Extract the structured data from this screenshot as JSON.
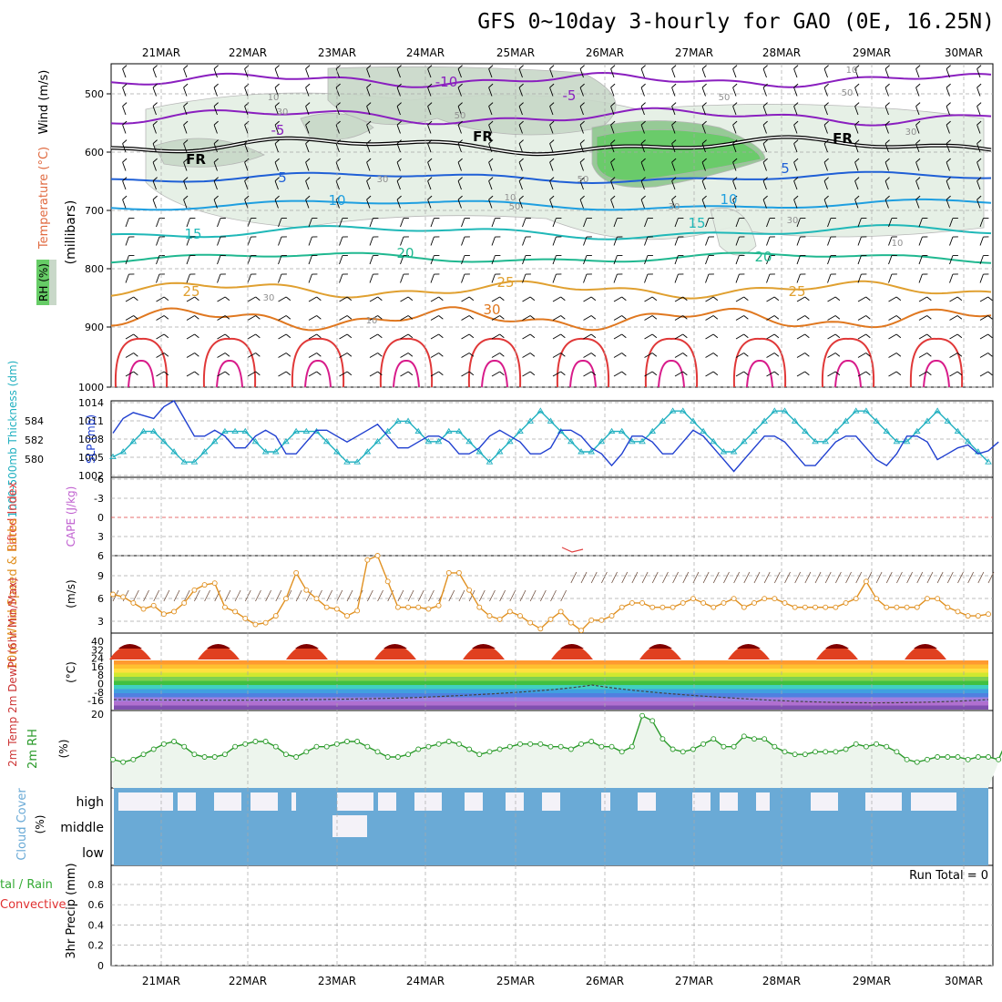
{
  "title": "GFS 0~10day 3-hourly for GAO (0E, 16.25N)",
  "dates": [
    "21MAR",
    "22MAR",
    "23MAR",
    "24MAR",
    "25MAR",
    "26MAR",
    "27MAR",
    "28MAR",
    "29MAR",
    "30MAR"
  ],
  "colors": {
    "grid": "#a8a8a8",
    "temp_m10": "#8a1fbf",
    "temp_5": "#1f5fd6",
    "temp_10": "#1f9fe0",
    "temp_15": "#20b8b8",
    "temp_20": "#20b890",
    "temp_25": "#e0a030",
    "temp_30": "#e07820",
    "temp_35": "#e03838",
    "rh_light": "#e4efe4",
    "rh_mid": "#c8d8c8",
    "rh_dark": "#8ec68e",
    "rh_green": "#66cc66",
    "slp": "#1f3fd0",
    "thickness": "#20b0c0",
    "wind10": "#e09020",
    "rh2m": "#2a9a2a",
    "cloud": "#6aaad6",
    "cloud_clear": "#f4f2f8",
    "lifted": "#e04040",
    "cape": "#c060d0",
    "run_total": "#000000"
  },
  "panels": {
    "upper": {
      "ylabel_wind": "Wind (m/s)",
      "ylabel_temp": "Temperature (°C)",
      "ylabel_rh": "RH (%)",
      "ylabel_units": "(millibars)",
      "yticks": [
        "500",
        "600",
        "700",
        "800",
        "900",
        "1000"
      ],
      "contour_labels": [
        {
          "text": "-10",
          "color": "temp_m10"
        },
        {
          "text": "-5",
          "color": "temp_m10"
        },
        {
          "text": "-5",
          "color": "temp_m10"
        },
        {
          "text": "FR",
          "color": "black"
        },
        {
          "text": "FR",
          "color": "black"
        },
        {
          "text": "FR",
          "color": "black"
        },
        {
          "text": "5",
          "color": "temp_5"
        },
        {
          "text": "5",
          "color": "temp_5"
        },
        {
          "text": "10",
          "color": "temp_10"
        },
        {
          "text": "10",
          "color": "temp_10"
        },
        {
          "text": "15",
          "color": "temp_15"
        },
        {
          "text": "15",
          "color": "temp_15"
        },
        {
          "text": "20",
          "color": "temp_20"
        },
        {
          "text": "20",
          "color": "temp_20"
        },
        {
          "text": "25",
          "color": "temp_25"
        },
        {
          "text": "25",
          "color": "temp_25"
        },
        {
          "text": "25",
          "color": "temp_25"
        },
        {
          "text": "30",
          "color": "temp_30"
        }
      ],
      "rh_labels": [
        "10",
        "30",
        "30",
        "50",
        "50",
        "30",
        "10",
        "30",
        "50",
        "30",
        "10",
        "50",
        "10",
        "30",
        "50",
        "10"
      ]
    },
    "slp": {
      "ylabel_left": "1000-500mb Thickness (dm)",
      "ylabel_right": "SLP (mb)",
      "yticks_left": [
        "584",
        "582",
        "580"
      ],
      "yticks_right": [
        "1014",
        "1011",
        "1008",
        "1005",
        "1002"
      ]
    },
    "lifted": {
      "ylabel_left": "Lifted Index",
      "ylabel_right": "CAPE (J/kg)",
      "yticks": [
        "-6",
        "-3",
        "0",
        "3",
        "6"
      ]
    },
    "wind10": {
      "ylabel": "10m Wind Speed & Barbs",
      "ylabel_units": "(m/s)",
      "yticks": [
        "9",
        "6",
        "3"
      ]
    },
    "temp2m": {
      "ylabel": "2m Temp 2m DewPt (6hr Min/Max)",
      "ylabel_units": "(°C)",
      "yticks": [
        "40",
        "32",
        "24",
        "16",
        "8",
        "0",
        "-8",
        "-16"
      ]
    },
    "rh2m": {
      "ylabel": "2m RH",
      "ylabel_units": "(%)",
      "yticks": [
        "20"
      ]
    },
    "cloud": {
      "ylabel": "Cloud Cover",
      "ylabel_units": "(%)",
      "levels": [
        "high",
        "middle",
        "low"
      ]
    },
    "precip": {
      "ylabel_left": "tal / Rain",
      "ylabel_left2": "Convective",
      "ylabel": "3hr Precip (mm)",
      "yticks": [
        "0.8",
        "0.6",
        "0.4",
        "0.2",
        "0"
      ],
      "run_total": "Run Total = 0"
    }
  },
  "chart_data": [
    {
      "type": "line",
      "name": "2m RH (%)",
      "values": [
        11,
        10,
        11,
        13,
        15,
        17,
        18,
        16,
        13,
        12,
        12,
        13,
        16,
        17,
        18,
        18,
        16,
        13,
        12,
        14,
        16,
        16,
        17,
        18,
        18,
        16,
        14,
        12,
        12,
        13,
        15,
        16,
        17,
        18,
        17,
        15,
        13,
        14,
        15,
        16,
        17,
        17,
        17,
        16,
        16,
        15,
        17,
        18,
        16,
        16,
        14,
        16,
        28,
        26,
        19,
        15,
        14,
        15,
        17,
        19,
        16,
        16,
        20,
        19,
        19,
        16,
        14,
        13,
        13,
        14,
        14,
        14,
        15,
        17,
        16,
        17,
        16,
        14,
        11,
        10,
        11,
        12,
        12,
        12,
        11,
        12,
        12,
        11,
        20,
        30
      ],
      "ylim": [
        0,
        30
      ]
    },
    {
      "type": "line",
      "name": "10m Wind Speed (m/s)",
      "values": [
        6.5,
        6.2,
        5.5,
        4.8,
        5.2,
        4.2,
        4.5,
        5.5,
        7,
        7.6,
        7.8,
        5,
        4.5,
        3.7,
        3,
        3.2,
        4,
        6,
        9,
        7,
        6,
        5,
        4.8,
        4,
        4.6,
        10.5,
        11,
        8,
        5,
        5,
        5,
        4.8,
        5.2,
        9,
        9,
        7,
        5,
        4,
        3.6,
        4.5,
        4,
        3.2,
        2.5,
        3.6,
        4.5,
        3.2,
        2.3,
        3.5,
        3.5,
        4,
        5,
        5.5,
        5.5,
        5,
        5,
        5,
        5.5,
        6,
        5.5,
        5,
        5.5,
        6,
        5,
        5.5,
        6,
        6,
        5.5,
        5,
        5,
        5,
        5,
        5,
        5.5,
        6,
        8,
        6,
        5,
        5,
        5,
        5,
        6,
        6,
        5,
        4.5,
        4,
        4,
        4.2
      ],
      "ylim": [
        2,
        11
      ]
    },
    {
      "type": "line",
      "name": "SLP (mb)",
      "values": [
        1008.5,
        1011,
        1012,
        1011.5,
        1011,
        1013,
        1014,
        1011,
        1008,
        1008,
        1009,
        1008,
        1006,
        1006,
        1008,
        1009,
        1008,
        1005,
        1005,
        1007,
        1009,
        1009,
        1008,
        1007,
        1008,
        1009,
        1010,
        1008,
        1006,
        1006,
        1007,
        1008,
        1008,
        1007,
        1005,
        1005,
        1006,
        1008,
        1009,
        1008,
        1007,
        1005,
        1005,
        1006,
        1009,
        1009,
        1008,
        1006,
        1005,
        1003,
        1005,
        1008,
        1008,
        1007,
        1005,
        1005,
        1007,
        1009,
        1008,
        1006,
        1004,
        1002,
        1004,
        1006,
        1008,
        1008,
        1007,
        1005,
        1003,
        1003,
        1005,
        1007,
        1008,
        1008,
        1006,
        1004,
        1003,
        1005,
        1008,
        1008,
        1007,
        1004,
        1005,
        1006,
        1006.5,
        1005,
        1005.5,
        1007
      ],
      "ylim": [
        1001,
        1014
      ]
    },
    {
      "type": "line",
      "name": "1000-500mb Thickness (dm)",
      "values": [
        580.5,
        581,
        582,
        583,
        583,
        582,
        581,
        580,
        580,
        581,
        582,
        583,
        583,
        583,
        582,
        581,
        581,
        582,
        583,
        583,
        583,
        582,
        581,
        580,
        580,
        581,
        582,
        583,
        584,
        584,
        583,
        582,
        582,
        583,
        583,
        582,
        581,
        580,
        581,
        582,
        583,
        584,
        585,
        584,
        583,
        582,
        581,
        581,
        582,
        583,
        583,
        582,
        582,
        583,
        584,
        585,
        585,
        584,
        583,
        582,
        581,
        581,
        582,
        583,
        584,
        585,
        585,
        584,
        583,
        582,
        582,
        583,
        584,
        585,
        585,
        584,
        583,
        582,
        582,
        583,
        584,
        585,
        584,
        583,
        582,
        581,
        580
      ],
      "ylim": [
        578.5,
        586
      ]
    }
  ]
}
